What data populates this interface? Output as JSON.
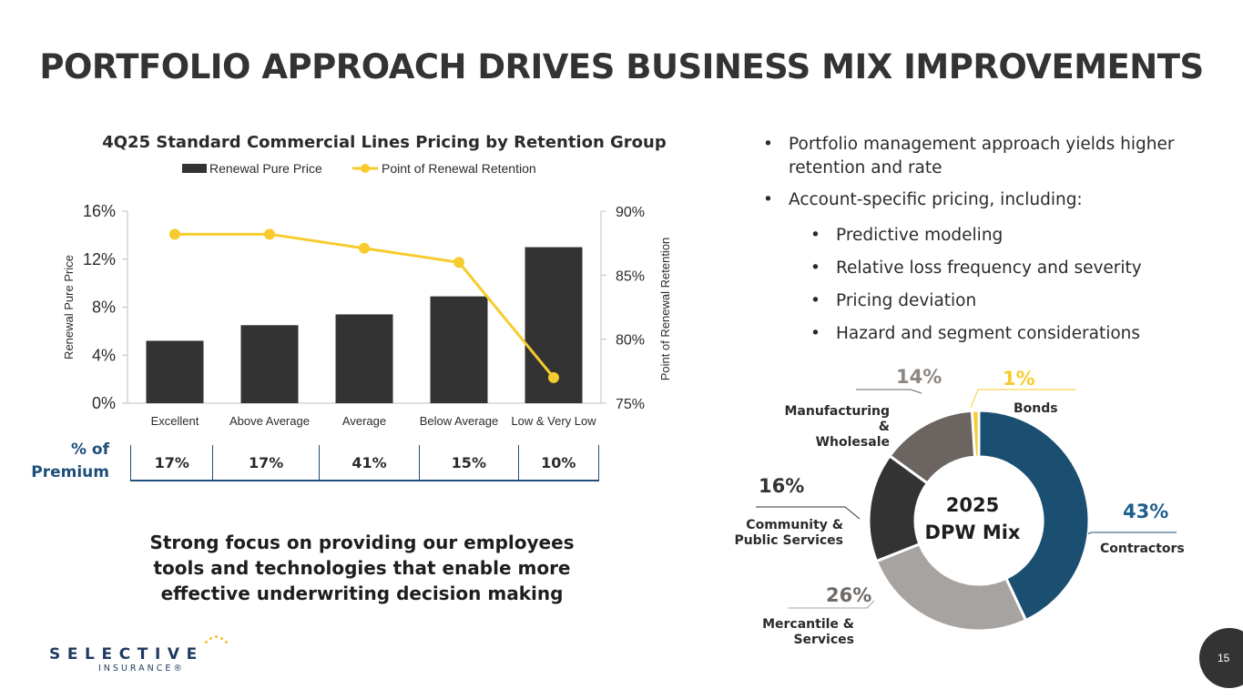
{
  "title": "PORTFOLIO APPROACH DRIVES BUSINESS MIX IMPROVEMENTS",
  "chart_data": [
    {
      "type": "bar",
      "title": "4Q25 Standard Commercial Lines Pricing by Retention Group",
      "categories": [
        "Excellent",
        "Above Average",
        "Average",
        "Below Average",
        "Low & Very Low"
      ],
      "series": [
        {
          "name": "Renewal Pure Price",
          "type": "bar",
          "axis": "left",
          "values": [
            5.2,
            6.5,
            7.4,
            8.9,
            13.0
          ],
          "color": "#333333"
        },
        {
          "name": "Point of Renewal Retention",
          "type": "line",
          "axis": "right",
          "values": [
            88.2,
            88.2,
            87.1,
            86.0,
            77.0
          ],
          "color": "#f7cb2e"
        }
      ],
      "ylabel": "Renewal Pure Price",
      "ylim": [
        0,
        16
      ],
      "yticks": [
        "0%",
        "4%",
        "8%",
        "12%",
        "16%"
      ],
      "y2label": "Point of Renewal Retention",
      "y2lim": [
        75,
        90
      ],
      "y2ticks": [
        "75%",
        "80%",
        "85%",
        "90%"
      ],
      "legend": "top"
    },
    {
      "type": "pie",
      "title": "2025 DPW Mix",
      "labels": [
        "Contractors",
        "Mercantile & Services",
        "Community & Public Services",
        "Manufacturing & Wholesale",
        "Bonds"
      ],
      "values": [
        43,
        26,
        16,
        14,
        1
      ],
      "colors": [
        "#1b4f72",
        "#a7a3a0",
        "#333333",
        "#6b6460",
        "#f7cb2e"
      ]
    }
  ],
  "premium": {
    "label_line1": "% of",
    "label_line2": "Premium",
    "values": [
      "17%",
      "17%",
      "41%",
      "15%",
      "10%"
    ]
  },
  "focus_text": "Strong focus on providing our employees tools and technologies that enable more effective underwriting decision making",
  "bullets": {
    "b1": "Portfolio management approach yields higher retention and rate",
    "b2": "Account-specific pricing, including:",
    "sub": [
      "Predictive modeling",
      "Relative loss frequency and severity",
      "Pricing deviation",
      "Hazard and segment considerations"
    ]
  },
  "donut": {
    "center_line1": "2025",
    "center_line2": "DPW Mix",
    "labels": {
      "contractors": "Contractors",
      "mercantile_line1": "Mercantile &",
      "mercantile_line2": "Services",
      "community_line1": "Community &",
      "community_line2": "Public Services",
      "manufacturing_line1": "Manufacturing &",
      "manufacturing_line2": "Wholesale",
      "bonds": "Bonds"
    },
    "pcts": {
      "contractors": "43%",
      "mercantile": "26%",
      "community": "16%",
      "manufacturing": "14%",
      "bonds": "1%"
    }
  },
  "logo": {
    "word": "SELECTIVE",
    "sub": "INSURANCE®"
  },
  "page_number": "15",
  "colors": {
    "navy": "#1f4e79",
    "dark": "#333333",
    "yellow": "#f7cb2e"
  }
}
